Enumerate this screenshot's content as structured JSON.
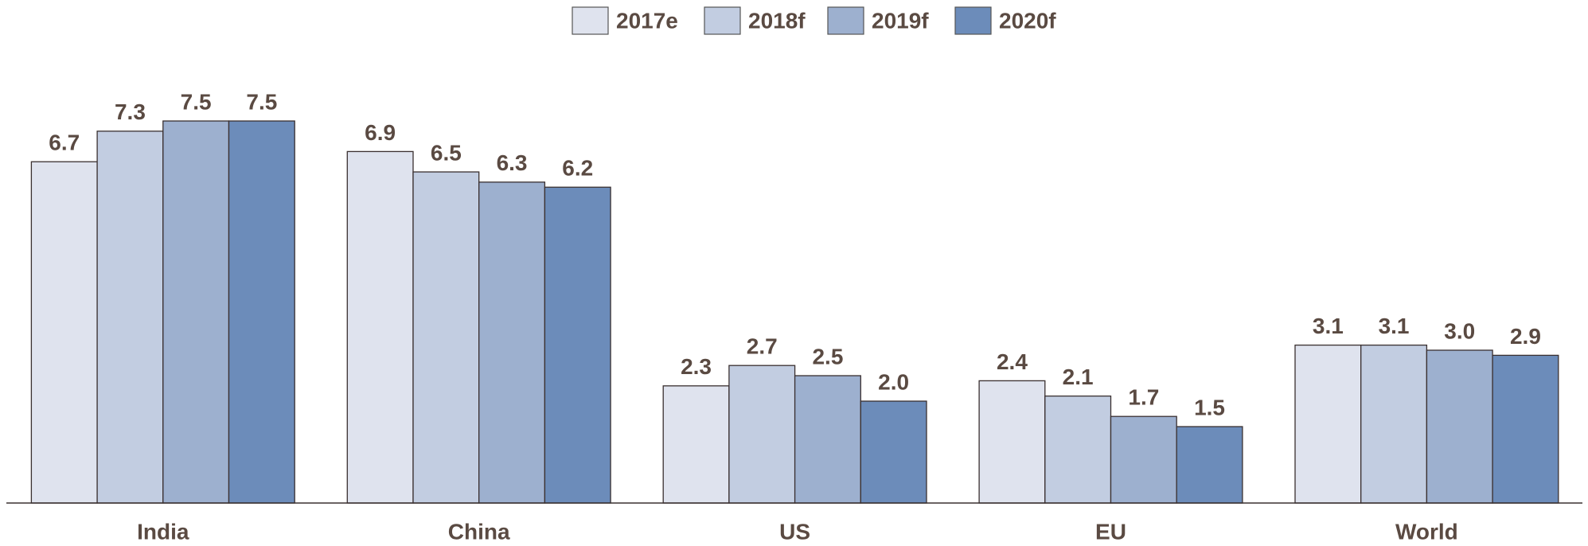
{
  "chart_data": {
    "type": "bar",
    "categories": [
      "India",
      "China",
      "US",
      "EU",
      "World"
    ],
    "series": [
      {
        "name": "2017e",
        "color": "#dfe3ee",
        "values": [
          6.7,
          6.9,
          2.3,
          2.4,
          3.1
        ],
        "value_labels": [
          "6.7",
          "6.9",
          "2.3",
          "2.4",
          "3.1"
        ]
      },
      {
        "name": "2018f",
        "color": "#c2cde1",
        "values": [
          7.3,
          6.5,
          2.7,
          2.1,
          3.1
        ],
        "value_labels": [
          "7.3",
          "6.5",
          "2.7",
          "2.1",
          "3.1"
        ]
      },
      {
        "name": "2019f",
        "color": "#9db0cf",
        "values": [
          7.5,
          6.3,
          2.5,
          1.7,
          3.0
        ],
        "value_labels": [
          "7.5",
          "6.3",
          "2.5",
          "1.7",
          "3.0"
        ]
      },
      {
        "name": "2020f",
        "color": "#6c8cba",
        "values": [
          7.5,
          6.2,
          2.0,
          1.5,
          2.9
        ],
        "value_labels": [
          "7.5",
          "6.2",
          "2.0",
          "1.5",
          "2.9"
        ]
      }
    ],
    "ylim": [
      0,
      8
    ],
    "grid": false,
    "legend": "top"
  }
}
